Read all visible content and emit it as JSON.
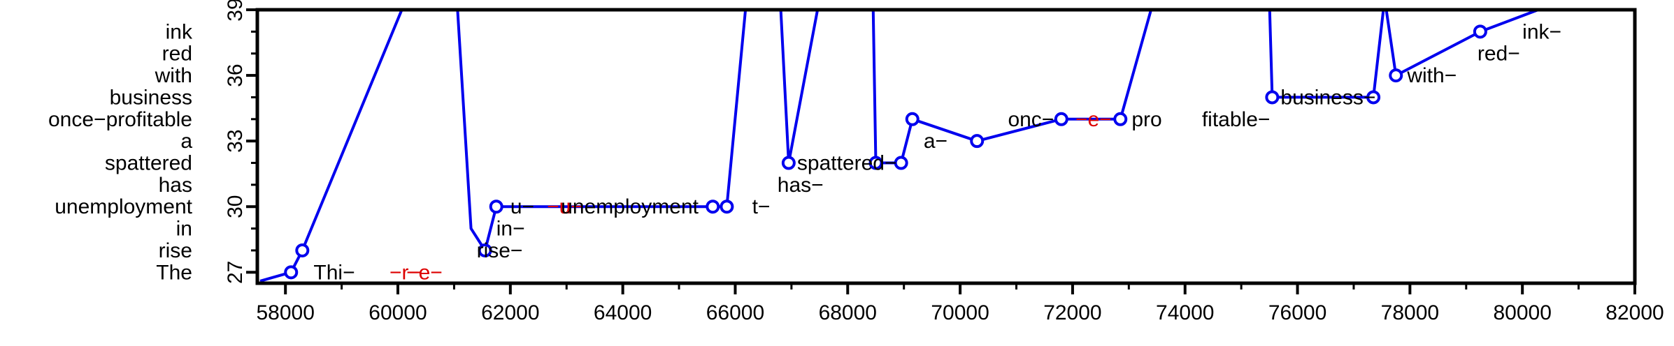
{
  "chart_data": {
    "type": "line",
    "title": "",
    "xlabel": "",
    "ylabel": "",
    "xlim": [
      57500,
      82000
    ],
    "ylim": [
      26.5,
      39
    ],
    "x_ticks": [
      58000,
      60000,
      62000,
      64000,
      66000,
      68000,
      70000,
      72000,
      74000,
      76000,
      78000,
      80000,
      82000
    ],
    "x_tick_labels": [
      "58000",
      "60000",
      "62000",
      "64000",
      "66000",
      "68000",
      "70000",
      "72000",
      "74000",
      "76000",
      "78000",
      "80000",
      "82000"
    ],
    "y_ticks": [
      27,
      30,
      33,
      36,
      39
    ],
    "y_tick_labels": [
      "27",
      "30",
      "33",
      "36",
      "39"
    ],
    "y_category_labels": [
      "The",
      "rise",
      "in",
      "unemployment",
      "has",
      "spattered",
      "a",
      "once−profitable",
      "business",
      "with",
      "red",
      "ink"
    ],
    "line_color": "#0000ee",
    "marker_color": "#0000ee",
    "overlay_color_main": "#000000",
    "overlay_color_alt": "#dd0000",
    "series": [
      {
        "points": [
          [
            57550,
            26.6
          ],
          [
            58100,
            27
          ],
          [
            58300,
            28
          ],
          [
            60150,
            39.5
          ],
          [
            61050,
            39.5
          ],
          [
            61300,
            29
          ],
          [
            61550,
            28
          ],
          [
            61750,
            30
          ],
          [
            65600,
            30
          ],
          [
            65850,
            30
          ],
          [
            66200,
            39.5
          ],
          [
            66800,
            39.5
          ],
          [
            66950,
            32
          ],
          [
            67500,
            39.5
          ],
          [
            68450,
            39.5
          ],
          [
            68500,
            32
          ],
          [
            68950,
            32
          ],
          [
            69150,
            34
          ],
          [
            70300,
            33
          ],
          [
            71800,
            34
          ],
          [
            72850,
            34
          ],
          [
            73450,
            39.5
          ],
          [
            75500,
            39.5
          ],
          [
            75550,
            35
          ],
          [
            77350,
            35
          ],
          [
            77550,
            39.5
          ],
          [
            77750,
            36
          ],
          [
            79250,
            38
          ],
          [
            80800,
            39.5
          ]
        ],
        "markers": [
          [
            58100,
            27
          ],
          [
            58300,
            28
          ],
          [
            61550,
            28
          ],
          [
            61750,
            30
          ],
          [
            65600,
            30
          ],
          [
            65850,
            30
          ],
          [
            66950,
            32
          ],
          [
            68500,
            32
          ],
          [
            68950,
            32
          ],
          [
            69150,
            34
          ],
          [
            70300,
            33
          ],
          [
            71800,
            34
          ],
          [
            72850,
            34
          ],
          [
            75550,
            35
          ],
          [
            77350,
            35
          ],
          [
            77750,
            36
          ],
          [
            79250,
            38
          ]
        ]
      }
    ],
    "text_overlays": [
      {
        "x": 58500,
        "y": 27,
        "text": "Thi−",
        "color": "main"
      },
      {
        "x": 59850,
        "y": 27,
        "text": "−r−",
        "color": "alt"
      },
      {
        "x": 60150,
        "y": 27,
        "text": "−e−",
        "color": "alt"
      },
      {
        "x": 61400,
        "y": 28,
        "text": "rise−",
        "color": "main"
      },
      {
        "x": 61750,
        "y": 29,
        "text": "in−",
        "color": "main"
      },
      {
        "x": 62000,
        "y": 30,
        "text": "u−",
        "color": "main"
      },
      {
        "x": 62650,
        "y": 30,
        "text": "−u−",
        "color": "alt"
      },
      {
        "x": 62900,
        "y": 30,
        "text": "unemployment",
        "color": "main"
      },
      {
        "x": 66300,
        "y": 30,
        "text": "t−",
        "color": "main"
      },
      {
        "x": 66750,
        "y": 31,
        "text": "has−",
        "color": "main"
      },
      {
        "x": 67100,
        "y": 32,
        "text": "spattered−",
        "color": "main"
      },
      {
        "x": 69350,
        "y": 33,
        "text": "a−",
        "color": "main"
      },
      {
        "x": 70850,
        "y": 34,
        "text": "onc−",
        "color": "main"
      },
      {
        "x": 72050,
        "y": 34,
        "text": "−e−",
        "color": "alt"
      },
      {
        "x": 73050,
        "y": 34,
        "text": "pro",
        "color": "main"
      },
      {
        "x": 74300,
        "y": 34,
        "text": "fitable−",
        "color": "main"
      },
      {
        "x": 75700,
        "y": 35,
        "text": "business−",
        "color": "main"
      },
      {
        "x": 77950,
        "y": 36,
        "text": "with−",
        "color": "main"
      },
      {
        "x": 79200,
        "y": 37,
        "text": "red−",
        "color": "main"
      },
      {
        "x": 80000,
        "y": 38,
        "text": "ink−",
        "color": "main"
      }
    ]
  }
}
